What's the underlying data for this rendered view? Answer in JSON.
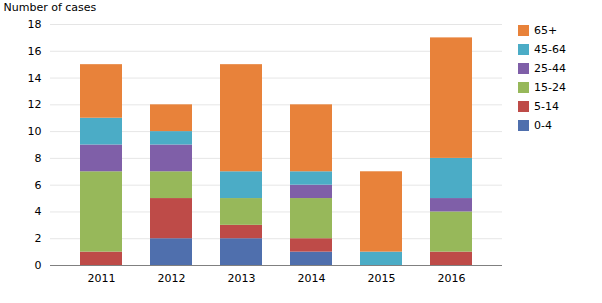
{
  "chart_data": {
    "type": "bar",
    "stacked": true,
    "categories": [
      "2011",
      "2012",
      "2013",
      "2014",
      "2015",
      "2016"
    ],
    "series": [
      {
        "name": "0-4",
        "color": "#4f6fad",
        "values": [
          0,
          2,
          2,
          1,
          0,
          0
        ]
      },
      {
        "name": "5-14",
        "color": "#be4b48",
        "values": [
          1,
          3,
          1,
          1,
          0,
          1
        ]
      },
      {
        "name": "15-24",
        "color": "#97b85a",
        "values": [
          6,
          2,
          2,
          3,
          0,
          3
        ]
      },
      {
        "name": "25-44",
        "color": "#7f5fa8",
        "values": [
          2,
          2,
          0,
          1,
          0,
          1
        ]
      },
      {
        "name": "45-64",
        "color": "#4bacc6",
        "values": [
          2,
          1,
          2,
          1,
          1,
          3
        ]
      },
      {
        "name": "65+",
        "color": "#e8823a",
        "values": [
          4,
          2,
          8,
          5,
          6,
          9
        ]
      }
    ],
    "ylabel": "Number of cases",
    "ylim": [
      0,
      18
    ],
    "yticks": [
      0,
      2,
      4,
      6,
      8,
      10,
      12,
      14,
      16,
      18
    ],
    "grid": true,
    "legend": "right"
  }
}
